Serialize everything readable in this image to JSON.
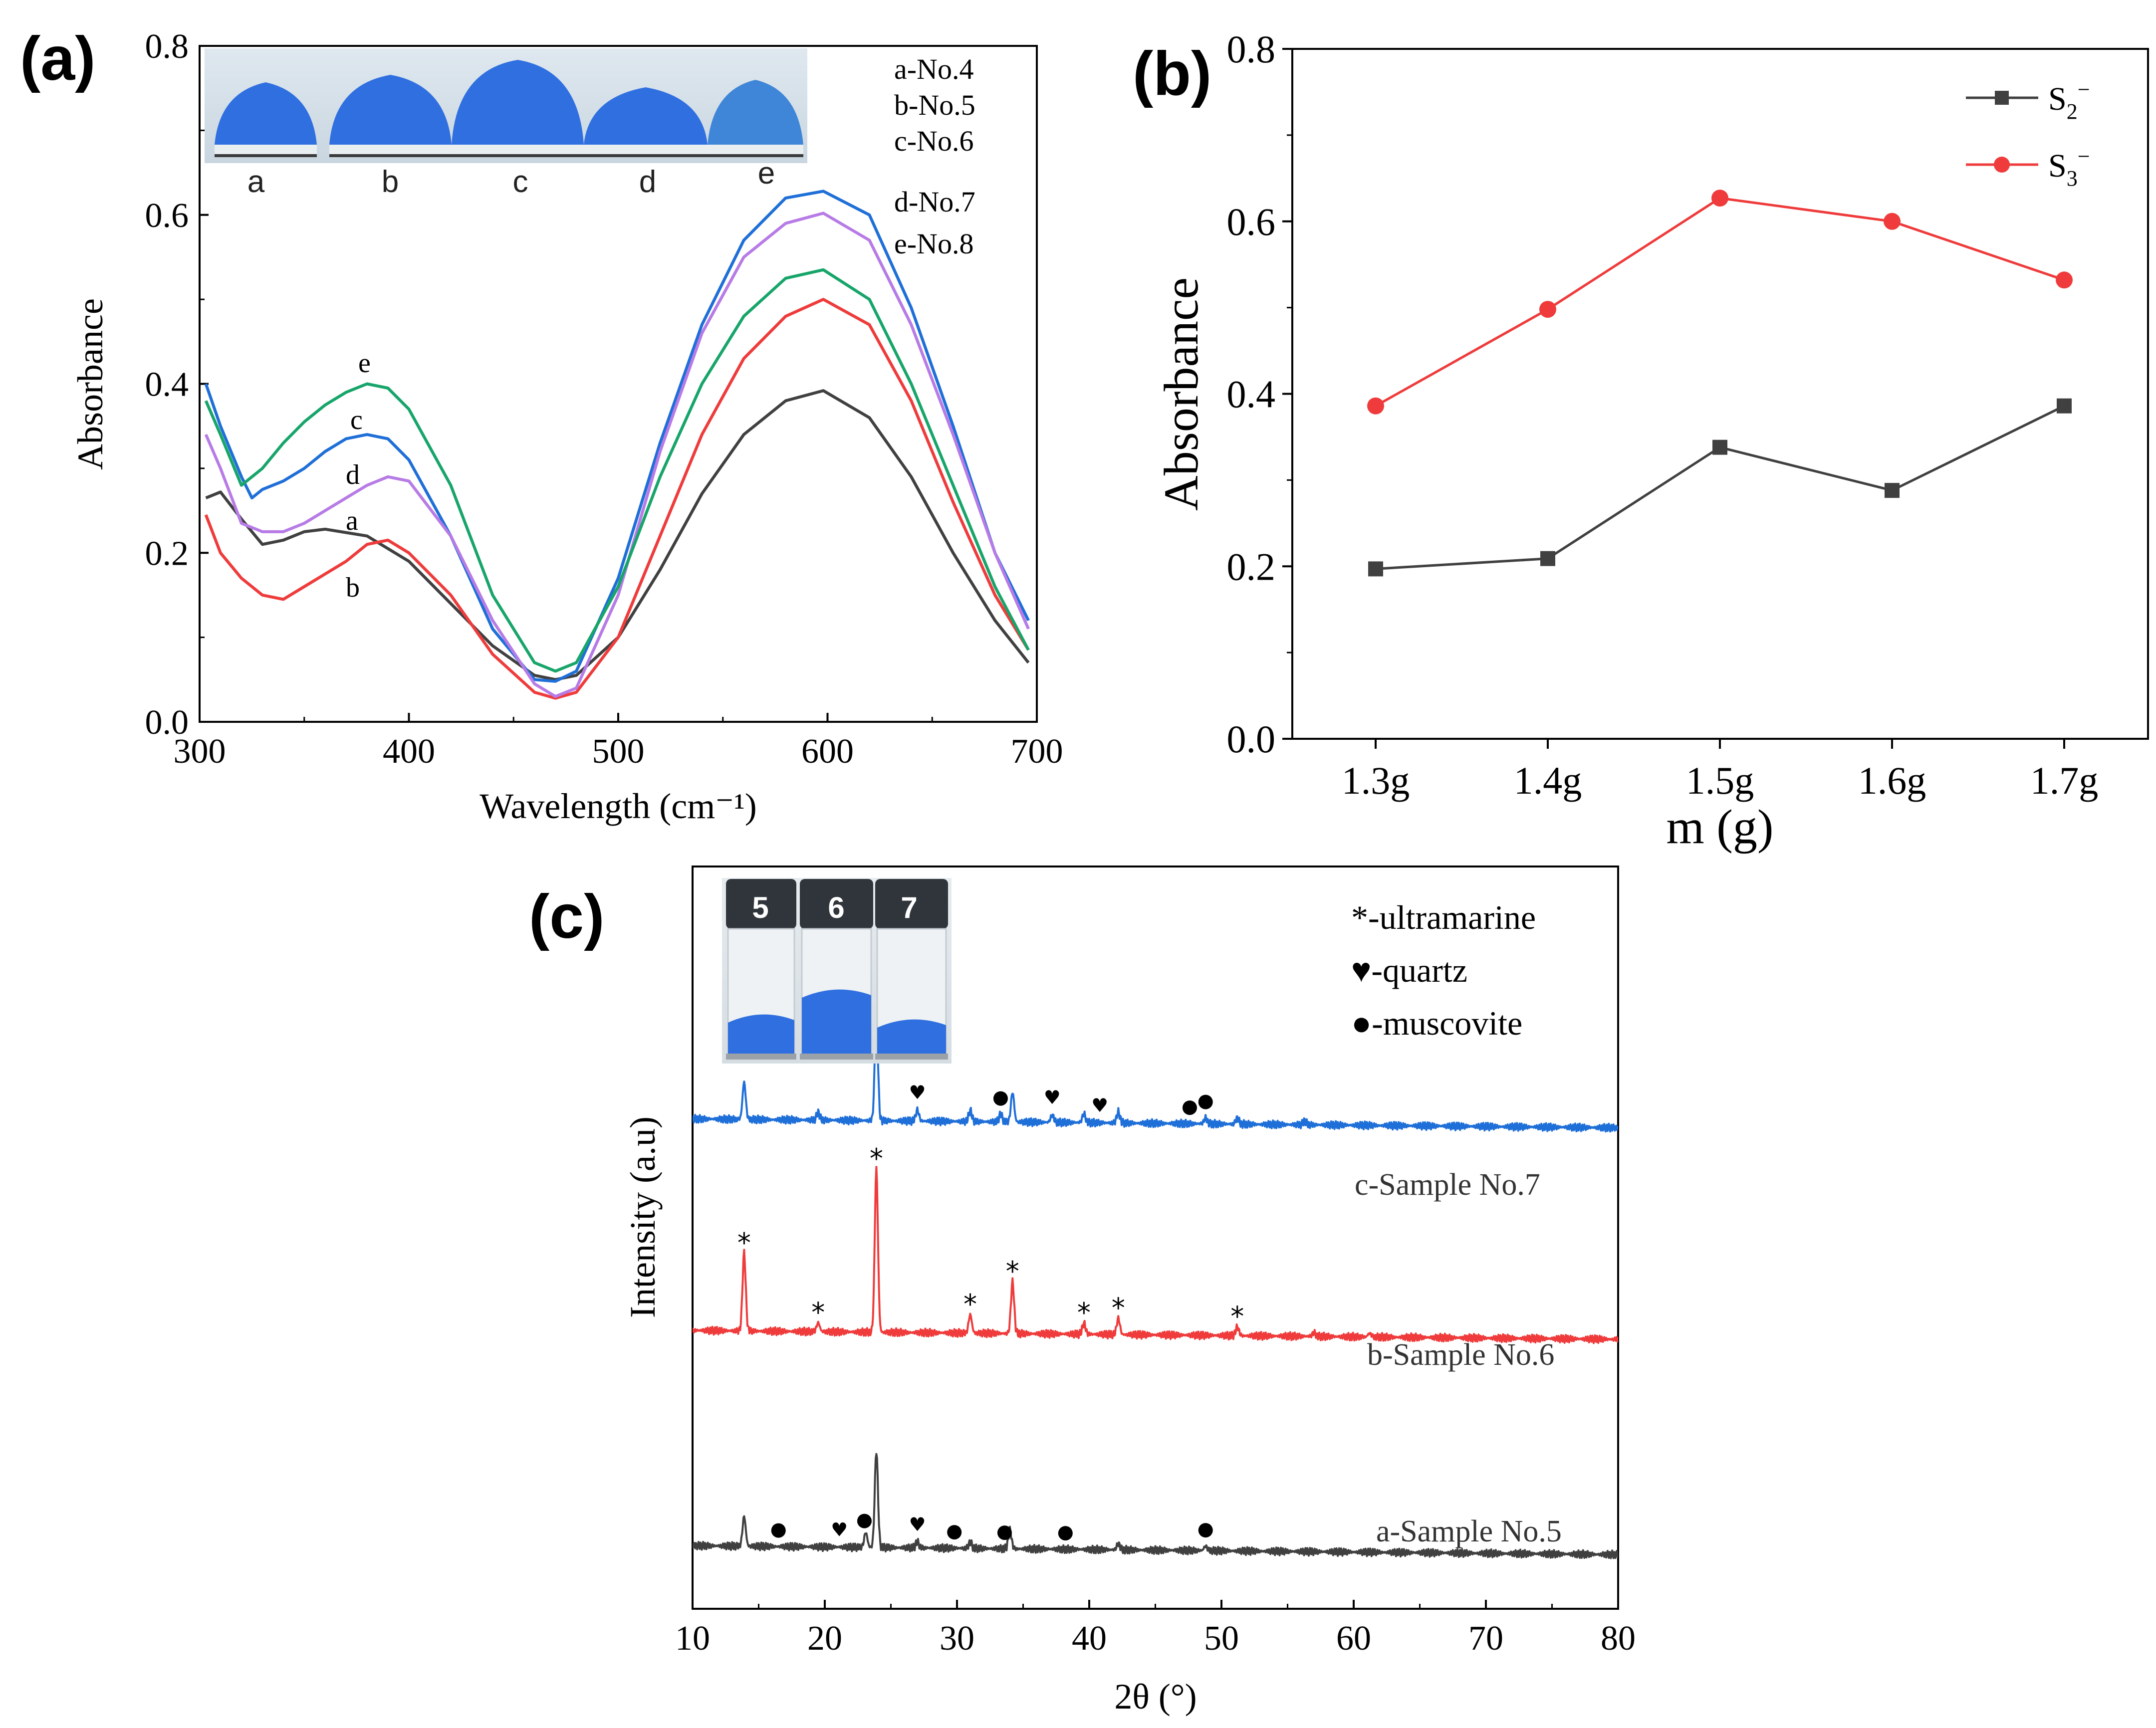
{
  "panels": {
    "a": {
      "label": "(a)",
      "photo_labels": [
        "a",
        "b",
        "c",
        "d",
        "e"
      ],
      "legend": [
        "a-No.4",
        "b-No.5",
        "c-No.6",
        "d-No.7",
        "e-No.8"
      ],
      "curve_labels": [
        "e",
        "c",
        "d",
        "a",
        "b"
      ]
    },
    "b": {
      "label": "(b)"
    },
    "c": {
      "label": "(c)",
      "vial_labels": [
        "5",
        "6",
        "7"
      ],
      "legend": [
        "*-ultramarine",
        "♥-quartz",
        "●-muscovite"
      ],
      "series_labels": [
        "c-Sample No.7",
        "b-Sample No.6",
        "a-Sample No.5"
      ],
      "markers": {
        "ultramarine": "*",
        "quartz": "♥",
        "muscovite": "●"
      }
    }
  },
  "colors": {
    "black": "#404040",
    "red": "#ef3b3b",
    "blue": "#1f6fd8",
    "green": "#17a56a",
    "violet": "#b77be6",
    "pigment": "#2f6fe0"
  },
  "chart_data": [
    {
      "id": "a",
      "type": "line",
      "title": "",
      "xlabel": "Wavelength (cm⁻¹)",
      "ylabel": "Absorbance",
      "xlim": [
        300,
        700
      ],
      "ylim": [
        0.0,
        0.8
      ],
      "xticks": [
        300,
        400,
        500,
        600,
        700
      ],
      "yticks": [
        "0.0",
        "0.2",
        "0.4",
        "0.6",
        "0.8"
      ],
      "series": [
        {
          "name": "a-No.4",
          "color": "#404040",
          "x": [
            303,
            310,
            320,
            330,
            340,
            350,
            360,
            380,
            400,
            420,
            440,
            460,
            470,
            480,
            500,
            520,
            540,
            560,
            580,
            598,
            620,
            640,
            660,
            680,
            696
          ],
          "y": [
            0.265,
            0.272,
            0.24,
            0.21,
            0.215,
            0.225,
            0.228,
            0.22,
            0.19,
            0.14,
            0.09,
            0.055,
            0.05,
            0.055,
            0.1,
            0.18,
            0.27,
            0.34,
            0.38,
            0.392,
            0.36,
            0.29,
            0.2,
            0.12,
            0.07
          ]
        },
        {
          "name": "b-No.5",
          "color": "#ef3b3b",
          "x": [
            303,
            310,
            320,
            330,
            340,
            350,
            360,
            370,
            380,
            390,
            400,
            420,
            440,
            460,
            470,
            480,
            500,
            520,
            540,
            560,
            580,
            598,
            620,
            640,
            660,
            680,
            696
          ],
          "y": [
            0.245,
            0.2,
            0.17,
            0.15,
            0.145,
            0.16,
            0.175,
            0.19,
            0.21,
            0.215,
            0.2,
            0.15,
            0.08,
            0.035,
            0.028,
            0.035,
            0.1,
            0.22,
            0.34,
            0.43,
            0.48,
            0.5,
            0.47,
            0.38,
            0.26,
            0.15,
            0.085
          ]
        },
        {
          "name": "c-No.6",
          "color": "#1f6fd8",
          "x": [
            303,
            310,
            320,
            325,
            330,
            340,
            350,
            360,
            370,
            380,
            390,
            400,
            420,
            440,
            460,
            470,
            480,
            500,
            520,
            540,
            560,
            580,
            598,
            620,
            640,
            660,
            680,
            696
          ],
          "y": [
            0.4,
            0.35,
            0.29,
            0.265,
            0.275,
            0.285,
            0.3,
            0.32,
            0.335,
            0.34,
            0.335,
            0.31,
            0.22,
            0.11,
            0.05,
            0.048,
            0.06,
            0.17,
            0.33,
            0.47,
            0.57,
            0.62,
            0.628,
            0.6,
            0.49,
            0.35,
            0.2,
            0.12
          ]
        },
        {
          "name": "d-No.7",
          "color": "#b77be6",
          "x": [
            303,
            310,
            320,
            330,
            340,
            350,
            360,
            370,
            380,
            390,
            400,
            420,
            440,
            460,
            470,
            480,
            500,
            520,
            540,
            560,
            580,
            598,
            620,
            640,
            660,
            680,
            696
          ],
          "y": [
            0.34,
            0.3,
            0.235,
            0.225,
            0.225,
            0.235,
            0.25,
            0.265,
            0.28,
            0.29,
            0.285,
            0.22,
            0.12,
            0.045,
            0.03,
            0.04,
            0.15,
            0.32,
            0.46,
            0.55,
            0.59,
            0.602,
            0.57,
            0.47,
            0.34,
            0.2,
            0.11
          ]
        },
        {
          "name": "e-No.8",
          "color": "#17a56a",
          "x": [
            303,
            310,
            320,
            330,
            340,
            350,
            360,
            370,
            380,
            390,
            400,
            420,
            440,
            460,
            470,
            480,
            500,
            520,
            540,
            560,
            580,
            598,
            620,
            640,
            660,
            680,
            696
          ],
          "y": [
            0.38,
            0.34,
            0.28,
            0.3,
            0.33,
            0.355,
            0.375,
            0.39,
            0.4,
            0.395,
            0.37,
            0.28,
            0.15,
            0.07,
            0.06,
            0.07,
            0.16,
            0.29,
            0.4,
            0.48,
            0.525,
            0.535,
            0.5,
            0.4,
            0.28,
            0.16,
            0.085
          ]
        }
      ]
    },
    {
      "id": "b",
      "type": "line",
      "title": "",
      "xlabel": "m (g)",
      "ylabel": "Absorbance",
      "ylim": [
        0.0,
        0.8
      ],
      "yticks": [
        "0.0",
        "0.2",
        "0.4",
        "0.6",
        "0.8"
      ],
      "categories": [
        "1.3g",
        "1.4g",
        "1.5g",
        "1.6g",
        "1.7g"
      ],
      "legend": {
        "position": "top-right"
      },
      "series": [
        {
          "name": "S2⁻",
          "base": "S",
          "sub": "2",
          "sup": "−",
          "marker": "square",
          "color": "#404040",
          "values": [
            0.197,
            0.209,
            0.338,
            0.288,
            0.386
          ]
        },
        {
          "name": "S3⁻",
          "base": "S",
          "sub": "3",
          "sup": "−",
          "marker": "circle",
          "color": "#ef3b3b",
          "values": [
            0.386,
            0.498,
            0.627,
            0.6,
            0.532
          ]
        }
      ]
    },
    {
      "id": "c",
      "type": "line",
      "title": "",
      "xlabel": "2θ (°)",
      "ylabel": "Intensity (a.u)",
      "xlim": [
        10,
        80
      ],
      "xticks": [
        10,
        20,
        30,
        40,
        50,
        60,
        70,
        80
      ],
      "yticks": [],
      "series": [
        {
          "name": "c-Sample No.7",
          "color": "#1f6fd8",
          "baseline": 0.66,
          "peaks": [
            [
              13.9,
              0.05
            ],
            [
              19.5,
              0.01
            ],
            [
              23.9,
              0.14
            ],
            [
              27.0,
              0.015
            ],
            [
              31.0,
              0.015
            ],
            [
              33.3,
              0.01
            ],
            [
              34.2,
              0.04
            ],
            [
              37.2,
              0.01
            ],
            [
              39.6,
              0.012
            ],
            [
              42.2,
              0.015
            ],
            [
              48.8,
              0.008
            ],
            [
              51.2,
              0.008
            ],
            [
              56.3,
              0.005
            ]
          ],
          "annotations": [
            {
              "x": 27.0,
              "marker": "♥"
            },
            {
              "x": 33.3,
              "marker": "●"
            },
            {
              "x": 37.2,
              "marker": "♥"
            },
            {
              "x": 40.8,
              "marker": "♥"
            },
            {
              "x": 47.6,
              "marker": "●"
            },
            {
              "x": 48.8,
              "marker": "●"
            }
          ]
        },
        {
          "name": "b-Sample No.6",
          "color": "#ef3b3b",
          "baseline": 0.375,
          "peaks": [
            [
              13.9,
              0.105
            ],
            [
              19.5,
              0.012
            ],
            [
              23.9,
              0.22
            ],
            [
              31.0,
              0.025
            ],
            [
              34.2,
              0.07
            ],
            [
              39.6,
              0.015
            ],
            [
              42.2,
              0.022
            ],
            [
              51.2,
              0.012
            ],
            [
              57.0,
              0.005
            ],
            [
              61.2,
              0.005
            ]
          ],
          "annotations": [
            {
              "x": 13.9,
              "marker": "*"
            },
            {
              "x": 19.5,
              "marker": "*"
            },
            {
              "x": 23.9,
              "marker": "*"
            },
            {
              "x": 31.0,
              "marker": "*"
            },
            {
              "x": 34.2,
              "marker": "*"
            },
            {
              "x": 39.6,
              "marker": "*"
            },
            {
              "x": 42.2,
              "marker": "*"
            },
            {
              "x": 51.2,
              "marker": "*"
            }
          ]
        },
        {
          "name": "a-Sample No.5",
          "color": "#404040",
          "baseline": 0.085,
          "peaks": [
            [
              13.9,
              0.04
            ],
            [
              23.1,
              0.02
            ],
            [
              23.9,
              0.13
            ],
            [
              27.0,
              0.008
            ],
            [
              31.0,
              0.008
            ],
            [
              34.0,
              0.025
            ],
            [
              42.2,
              0.008
            ],
            [
              48.8,
              0.006
            ]
          ],
          "annotations": [
            {
              "x": 16.5,
              "marker": "●"
            },
            {
              "x": 21.1,
              "marker": "♥"
            },
            {
              "x": 23.0,
              "marker": "●"
            },
            {
              "x": 27.0,
              "marker": "♥"
            },
            {
              "x": 29.8,
              "marker": "●"
            },
            {
              "x": 33.6,
              "marker": "●"
            },
            {
              "x": 38.2,
              "marker": "●"
            },
            {
              "x": 48.8,
              "marker": "●"
            }
          ]
        }
      ]
    }
  ]
}
